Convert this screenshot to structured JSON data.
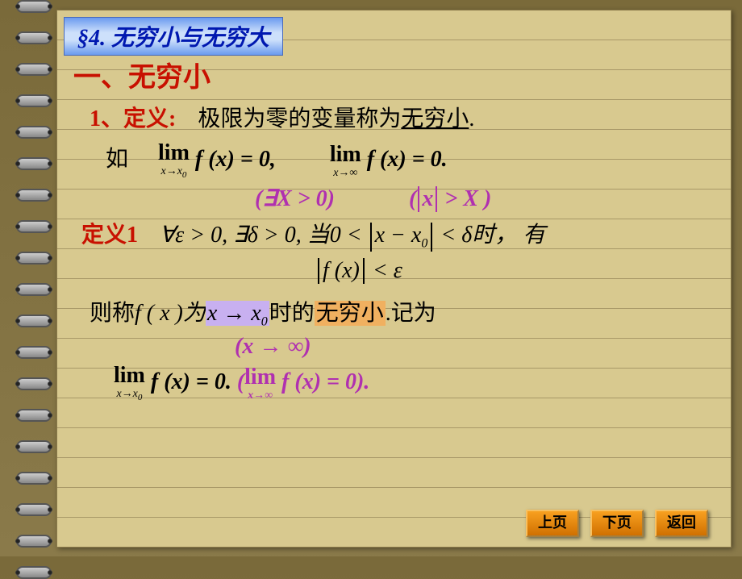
{
  "title": "§4.  无穷小与无穷大",
  "heading": "一、无穷小",
  "def_label": "1、定义:",
  "def_text": "极限为零的变量称为",
  "def_underline": "无穷小",
  "period": ".",
  "eg_label": "如",
  "lim1_top": "lim",
  "lim1_bot": "x→x",
  "lim1_bot_sub": "0",
  "fx_eq_0_comma": " f (x) = 0,",
  "lim2_top": "lim",
  "lim2_bot": "x→∞",
  "fx_eq_0_period": " f (x) = 0.",
  "purple_exist": "(∃X > 0)",
  "purple_absx": "(",
  "purple_absx_inner": "x",
  "purple_absx_rest": " > X )",
  "def1_label": "定义1",
  "forall_eps": "∀ε > 0, ∃δ > 0, 当0 < ",
  "abs_xx0": "x − x",
  "abs_xx0_sub": "0",
  "lt_delta": " < δ时， 有",
  "abs_fx": "f (x)",
  "lt_eps": " < ε",
  "then_text": "则称",
  "fx_is": "f ( x )为",
  "hl1": "x → x",
  "hl1_sub": "0",
  "mid_text": "时的",
  "hl2": "无穷小",
  "rec_text": ".记为",
  "purple_xinf": "(x → ∞)",
  "lim3_top": "lim",
  "lim3_bot": "x→x",
  "lim3_bot_sub": "0",
  "fx_eq_0_dot": " f (x) = 0.",
  "purple_lim_open": " (",
  "purple_lim_top": "lim",
  "purple_lim_bot": "x→∞",
  "purple_fx_close": " f (x) = 0).",
  "nav_prev": "上页",
  "nav_next": "下页",
  "nav_back": "返回",
  "colors": {
    "page_bg": "#d8c98f",
    "rule": "#a89868",
    "red": "#c81000",
    "purple": "#b030b0",
    "title_text": "#0018b0",
    "hl_purple": "#c8b0f0",
    "hl_orange": "#f0b060",
    "btn_bg": "#f8a020"
  }
}
